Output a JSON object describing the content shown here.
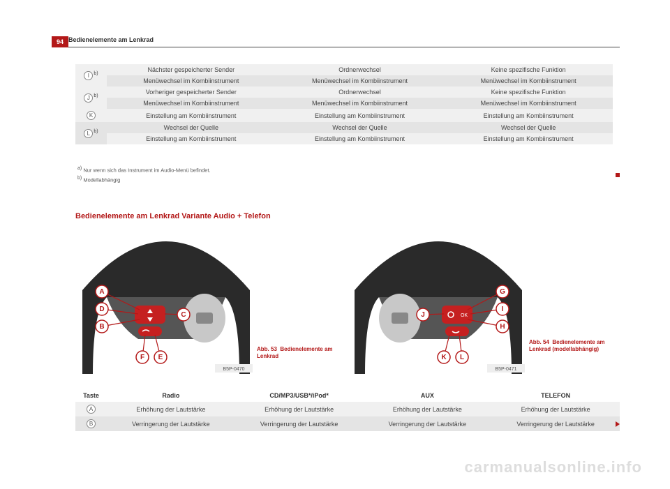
{
  "page_number": "94",
  "header_title": "Bedienelemente am Lenkrad",
  "top_table_rows": [
    {
      "rowspan": 2,
      "key": "I",
      "sup": "b)",
      "c1": "Nächster gespeicherter Sender",
      "c2": "Ordnerwechsel",
      "c3": "Keine spezifische Funktion"
    },
    {
      "c1": "Menüwechsel im Kombiinstrument",
      "c2": "Menüwechsel im Kombiinstrument",
      "c3": "Menüwechsel im Kombiinstrument"
    },
    {
      "rowspan": 2,
      "key": "J",
      "sup": "b)",
      "c1": "Vorheriger gespeicherter Sender",
      "c2": "Ordnerwechsel",
      "c3": "Keine spezifische Funktion"
    },
    {
      "c1": "Menüwechsel im Kombiinstrument",
      "c2": "Menüwechsel im Kombiinstrument",
      "c3": "Menüwechsel im Kombiinstrument"
    },
    {
      "rowspan": 1,
      "key": "K",
      "sup": "",
      "c1": "Einstellung am Kombiinstrument",
      "c2": "Einstellung am Kombiinstrument",
      "c3": "Einstellung am Kombiinstrument"
    },
    {
      "rowspan": 2,
      "key": "L",
      "sup": "b)",
      "c1": "Wechsel der Quelle",
      "c2": "Wechsel der Quelle",
      "c3": "Wechsel der Quelle"
    },
    {
      "c1": "Einstellung am Kombiinstrument",
      "c2": "Einstellung am Kombiinstrument",
      "c3": "Einstellung am Kombiinstrument"
    }
  ],
  "footnotes": {
    "a": "Nur wenn sich das Instrument im Audio-Menü befindet.",
    "b": "Modellabhängig"
  },
  "section_title": "Bedienelemente am Lenkrad Variante Audio + Telefon",
  "figure_left": {
    "caption_num": "Abb. 53",
    "caption_text": "Bedienelemente am Lenkrad",
    "code": "B5P-0470",
    "labels": [
      "A",
      "B",
      "C",
      "D",
      "E",
      "F"
    ]
  },
  "figure_right": {
    "caption_num": "Abb. 54",
    "caption_text": "Bedienelemente am Lenkrad (modellabhängig)",
    "code": "B5P-0471",
    "labels": [
      "G",
      "H",
      "I",
      "J",
      "K",
      "L"
    ]
  },
  "bottom_table": {
    "headers": [
      "Taste",
      "Radio",
      "CD/MP3/USB*/iPod*",
      "AUX",
      "TELEFON"
    ],
    "rows": [
      {
        "key": "A",
        "cells": [
          "Erhöhung der Lautstärke",
          "Erhöhung der Lautstärke",
          "Erhöhung der Lautstärke",
          "Erhöhung der Lautstärke"
        ]
      },
      {
        "key": "B",
        "cells": [
          "Verringerung der Lautstärke",
          "Verringerung der Lautstärke",
          "Verringerung der Lautstärke",
          "Verringerung der Lautstärke"
        ]
      }
    ]
  },
  "watermark": "carmanualsonline.info",
  "colors": {
    "seat_red": "#b31818",
    "row_light": "#f0f0f0",
    "row_dark": "#e4e4e4",
    "wheel_dark": "#2a2a2a",
    "wheel_mid": "#555",
    "wheel_light": "#c8c8c8",
    "button_red": "#c52020",
    "label_stroke": "#b31818"
  }
}
